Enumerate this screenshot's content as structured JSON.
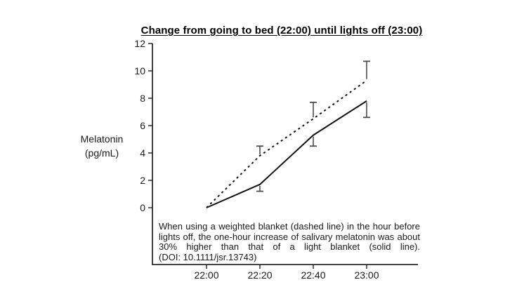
{
  "figure": {
    "background_color": "#ffffff",
    "text_color": "#1a1a1a",
    "axis_color": "#2b2b2b",
    "series_line_color": "#111111",
    "error_bar_color": "#4d4d4d"
  },
  "chart_data": {
    "type": "line",
    "title": "Change from going to bed (22:00) until lights off (23:00)",
    "ylabel": "Melatonin\n(pg/mL)",
    "xlabel": "",
    "x_tick_labels": [
      "22:00",
      "22:20",
      "22:40",
      "23:00"
    ],
    "y_ticks": [
      0,
      2,
      4,
      6,
      8,
      10,
      12
    ],
    "ylim": [
      0,
      12
    ],
    "grid": false,
    "legend_position": "none",
    "series": [
      {
        "name": "weighted blanket",
        "line_style": "dashed",
        "values": [
          0,
          3.8,
          6.5,
          9.3
        ],
        "error_bars": [
          null,
          0.7,
          1.2,
          1.4
        ],
        "error_direction": "up"
      },
      {
        "name": "light blanket",
        "line_style": "solid",
        "values": [
          0,
          1.7,
          5.3,
          7.8
        ],
        "error_bars": [
          null,
          0.5,
          0.8,
          1.2
        ],
        "error_direction": "down"
      }
    ]
  },
  "caption": {
    "text": "When using a weighted blanket (dashed line) in the hour before lights off, the one-hour increase of salivary melatonin was about 30% higher than that of a light blanket (solid line).",
    "doi": "(DOI: 10.1111/jsr.13743)"
  }
}
